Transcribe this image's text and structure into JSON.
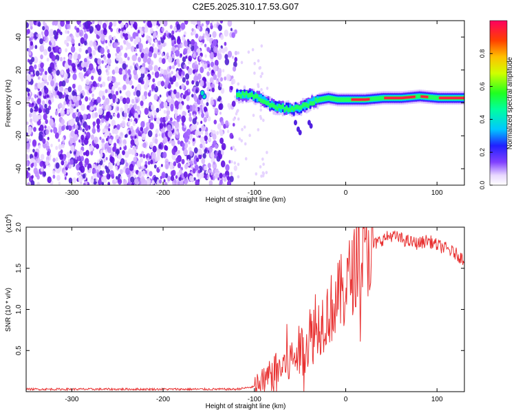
{
  "title": "C2E5.2025.310.17.53.G07",
  "chart_data": [
    {
      "type": "heatmap",
      "xlabel": "Height of straight line (km)",
      "ylabel": "Frequency (Hz)",
      "xlim": [
        -350,
        130
      ],
      "ylim": [
        -50,
        50
      ],
      "x_ticks": [
        -300,
        -200,
        -100,
        0,
        100
      ],
      "y_ticks": [
        -40,
        -20,
        0,
        20,
        40
      ],
      "colorbar": {
        "label": "Normalized spectral amplitude",
        "range": [
          0,
          1
        ],
        "ticks": [
          "0.0",
          "0.2",
          "0.4",
          "0.6",
          "0.8"
        ]
      },
      "noise_region_x": [
        -350,
        -120
      ],
      "ridge_points": [
        {
          "x": -120,
          "y": 5
        },
        {
          "x": -110,
          "y": 5
        },
        {
          "x": -100,
          "y": 4
        },
        {
          "x": -90,
          "y": 1
        },
        {
          "x": -80,
          "y": -2
        },
        {
          "x": -70,
          "y": -3
        },
        {
          "x": -60,
          "y": -4
        },
        {
          "x": -50,
          "y": -3
        },
        {
          "x": -40,
          "y": 0
        },
        {
          "x": -30,
          "y": 2
        },
        {
          "x": -20,
          "y": 3
        },
        {
          "x": -10,
          "y": 2
        },
        {
          "x": 0,
          "y": 2
        },
        {
          "x": 20,
          "y": 2
        },
        {
          "x": 40,
          "y": 3
        },
        {
          "x": 60,
          "y": 3
        },
        {
          "x": 80,
          "y": 4
        },
        {
          "x": 100,
          "y": 3
        },
        {
          "x": 130,
          "y": 3
        }
      ]
    },
    {
      "type": "line",
      "xlabel": "Height of straight line (km)",
      "ylabel": "SNR (10 * v/v)",
      "y_scale_label": "(x10",
      "y_scale_exp": "4",
      "y_scale_close": ")",
      "xlim": [
        -350,
        130
      ],
      "ylim": [
        0,
        2.0
      ],
      "x_ticks": [
        -300,
        -200,
        -100,
        0,
        100
      ],
      "y_ticks": [
        "0.5",
        "1.0",
        "1.5",
        "2.0"
      ],
      "line_color": "#e83030",
      "series": [
        {
          "name": "SNR",
          "x": [
            -350,
            -300,
            -250,
            -200,
            -150,
            -120,
            -100,
            -90,
            -80,
            -70,
            -60,
            -50,
            -40,
            -30,
            -20,
            -10,
            0,
            10,
            20,
            30,
            40,
            50,
            60,
            70,
            80,
            90,
            100,
            110,
            120,
            130
          ],
          "y": [
            0.03,
            0.03,
            0.03,
            0.03,
            0.03,
            0.03,
            0.06,
            0.12,
            0.22,
            0.3,
            0.38,
            0.5,
            0.62,
            0.8,
            0.95,
            1.1,
            1.3,
            1.5,
            1.65,
            1.78,
            1.85,
            1.9,
            1.86,
            1.82,
            1.8,
            1.84,
            1.78,
            1.74,
            1.68,
            1.6
          ]
        }
      ]
    }
  ]
}
